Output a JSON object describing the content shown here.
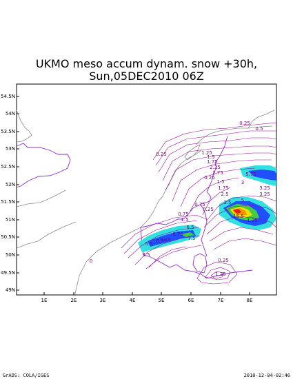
{
  "title": {
    "line1": "UKMO meso accum dynam. snow +30h,",
    "line2": "Sun,05DEC2010 06Z"
  },
  "footer": {
    "left": "GrADS: COLA/IGES",
    "right": "2010-12-04-02:46"
  },
  "map": {
    "lat_labels": [
      "54.5N",
      "54N",
      "53.5N",
      "53N",
      "52.5N",
      "52N",
      "51.5N",
      "51N",
      "50.5N",
      "50N",
      "49.5N",
      "49N"
    ],
    "lon_labels": [
      "1E",
      "2E",
      "3E",
      "4E",
      "5E",
      "6E",
      "7E",
      "8E"
    ],
    "contour_labels": [
      "0.25",
      "0.5",
      "0.25",
      "1.25",
      "1.5",
      "1.75",
      "2.25",
      "2.75",
      "0.25",
      "0.75",
      "1.5",
      "1.75",
      "2.5",
      "3",
      "3.25",
      "5.75",
      "3.25",
      "0.25",
      "5",
      "15.5",
      "3.5",
      "1.25",
      "0.75",
      "6.5",
      "1.5",
      "6.75",
      "7.5",
      "0.25",
      "5.5",
      "6.75",
      "3.5",
      "0.25",
      "1.25",
      "0"
    ],
    "colors": {
      "coast": "#8a8a8a",
      "border": "#8a2be2",
      "contour": "#a000a0",
      "shade_cyan": "#33e0e0",
      "shade_blue": "#1f4fff",
      "shade_green": "#44cc44",
      "shade_yellow": "#f0e000",
      "shade_orange": "#ff9000",
      "shade_red": "#e02020"
    }
  }
}
